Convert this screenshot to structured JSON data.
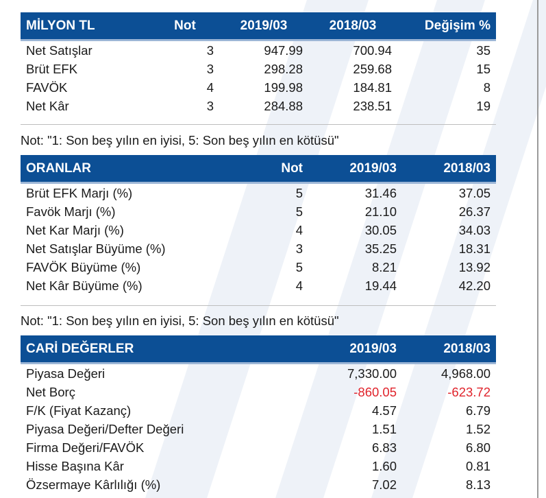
{
  "table1": {
    "headers": [
      "MİLYON TL",
      "Not",
      "2019/03",
      "2018/03",
      "Değişim %"
    ],
    "rows": [
      [
        "Net Satışlar",
        "3",
        "947.99",
        "700.94",
        "35"
      ],
      [
        "Brüt EFK",
        "3",
        "298.28",
        "259.68",
        "15"
      ],
      [
        "FAVÖK",
        "4",
        "199.98",
        "184.81",
        "8"
      ],
      [
        "Net Kâr",
        "3",
        "284.88",
        "238.51",
        "19"
      ]
    ]
  },
  "note1": "Not: \"1: Son beş yılın en iyisi, 5: Son beş yılın en kötüsü\"",
  "table2": {
    "headers": [
      "ORANLAR",
      "Not",
      "2019/03",
      "2018/03"
    ],
    "rows": [
      [
        "Brüt EFK Marjı (%)",
        "5",
        "31.46",
        "37.05"
      ],
      [
        "Favök Marjı (%)",
        "5",
        "21.10",
        "26.37"
      ],
      [
        "Net Kar Marjı (%)",
        "4",
        "30.05",
        "34.03"
      ],
      [
        "Net Satışlar Büyüme (%)",
        "3",
        "35.25",
        "18.31"
      ],
      [
        "FAVÖK Büyüme (%)",
        "5",
        "8.21",
        "13.92"
      ],
      [
        "Net Kâr Büyüme (%)",
        "4",
        "19.44",
        "42.20"
      ]
    ]
  },
  "note2": "Not: \"1: Son beş yılın en iyisi, 5: Son beş yılın en kötüsü\"",
  "table3": {
    "headers": [
      "CARİ DEĞERLER",
      "2019/03",
      "2018/03"
    ],
    "rows": [
      [
        "Piyasa Değeri",
        "7,330.00",
        "4,968.00"
      ],
      [
        "Net Borç",
        "-860.05",
        "-623.72"
      ],
      [
        "F/K (Fiyat Kazanç)",
        "4.57",
        "6.79"
      ],
      [
        "Piyasa Değeri/Defter Değeri",
        "1.51",
        "1.52"
      ],
      [
        "Firma Değeri/FAVÖK",
        "6.83",
        "6.80"
      ],
      [
        "Hisse Başına Kâr",
        "1.60",
        "0.81"
      ],
      [
        "Özsermaye Kârlılığı (%)",
        "7.02",
        "8.13"
      ]
    ]
  },
  "colors": {
    "header_bg": "#0c4f95",
    "negative": "#e0232b"
  }
}
